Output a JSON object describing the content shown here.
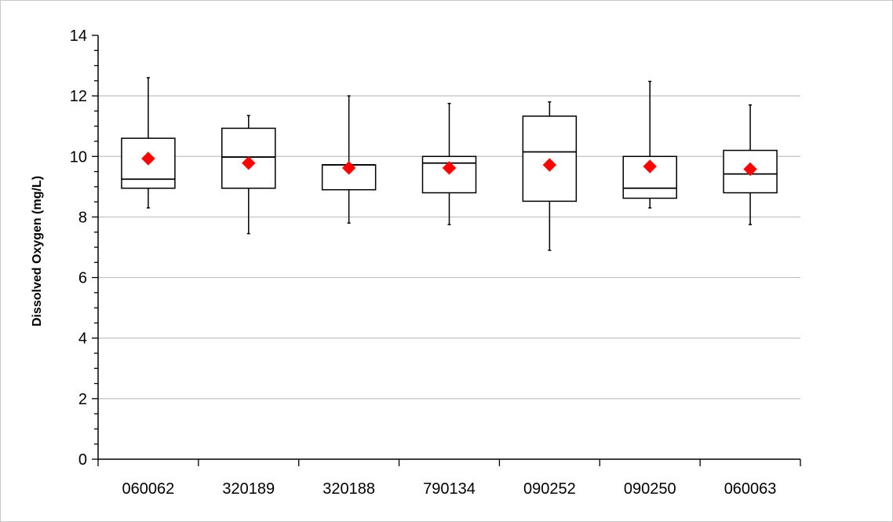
{
  "chart_data": {
    "type": "boxplot",
    "title": "",
    "xlabel": "",
    "ylabel": "Dissolved Oxygen (mg/L)",
    "ylim": [
      0,
      14
    ],
    "y_major_ticks": [
      0,
      2,
      4,
      6,
      8,
      10,
      12,
      14
    ],
    "y_minor_step": 0.5,
    "grid": "horizontal-major",
    "legend": "none",
    "colors": {
      "box": "#000000",
      "mean_marker": "#ff0000",
      "grid": "#c0c0c0"
    },
    "categories": [
      "060062",
      "320189",
      "320188",
      "790134",
      "090252",
      "090250",
      "060063"
    ],
    "boxes": [
      {
        "min": 8.3,
        "q1": 8.95,
        "median": 9.25,
        "q3": 10.6,
        "max": 12.6,
        "mean": 9.93
      },
      {
        "min": 7.45,
        "q1": 8.95,
        "median": 9.98,
        "q3": 10.93,
        "max": 11.35,
        "mean": 9.78
      },
      {
        "min": 7.8,
        "q1": 8.9,
        "median": 9.72,
        "q3": 9.72,
        "max": 12.0,
        "mean": 9.62
      },
      {
        "min": 7.75,
        "q1": 8.8,
        "median": 9.78,
        "q3": 10.0,
        "max": 11.75,
        "mean": 9.62
      },
      {
        "min": 6.9,
        "q1": 8.52,
        "median": 10.15,
        "q3": 11.33,
        "max": 11.8,
        "mean": 9.72
      },
      {
        "min": 8.3,
        "q1": 8.62,
        "median": 8.95,
        "q3": 10.0,
        "max": 12.48,
        "mean": 9.67
      },
      {
        "min": 7.75,
        "q1": 8.8,
        "median": 9.42,
        "q3": 10.2,
        "max": 11.7,
        "mean": 9.58
      }
    ]
  }
}
